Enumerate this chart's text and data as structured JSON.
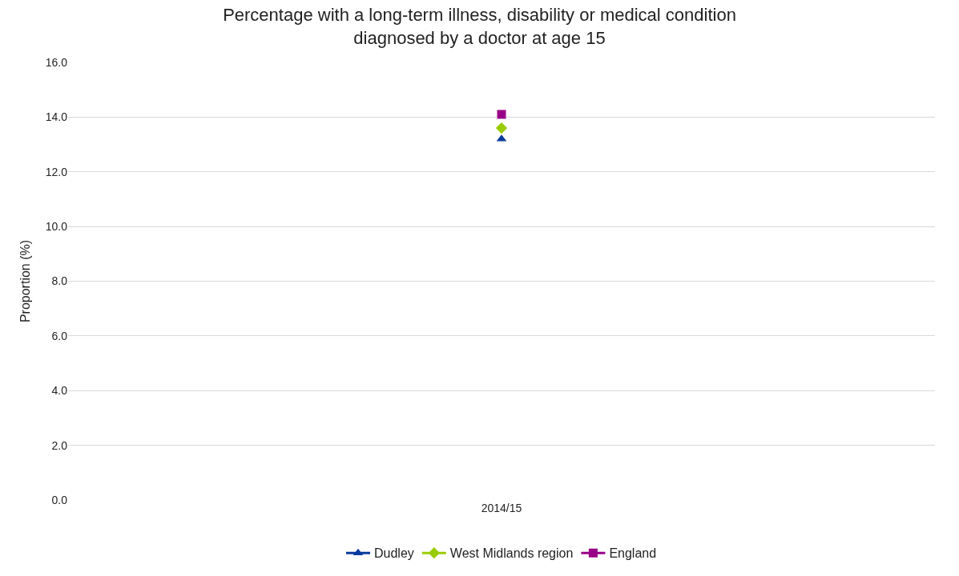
{
  "chart_data": {
    "type": "line",
    "title": "Percentage with a long-term illness, disability or medical condition\ndiagnosed by a doctor at age 15",
    "ylabel": "Proportion (%)",
    "categories": [
      "2014/15"
    ],
    "series": [
      {
        "name": "Dudley",
        "color": "#0b3a9e",
        "marker": "triangle",
        "values": [
          13.2
        ]
      },
      {
        "name": "West Midlands region",
        "color": "#99cc00",
        "marker": "diamond",
        "values": [
          13.6
        ]
      },
      {
        "name": "England",
        "color": "#990088",
        "marker": "square",
        "values": [
          14.1
        ]
      }
    ],
    "ylim": [
      0,
      16
    ],
    "yticks": [
      {
        "value": 0,
        "label": "0.0"
      },
      {
        "value": 2,
        "label": "2.0"
      },
      {
        "value": 4,
        "label": "4.0"
      },
      {
        "value": 6,
        "label": "6.0"
      },
      {
        "value": 8,
        "label": "8.0"
      },
      {
        "value": 10,
        "label": "10.0"
      },
      {
        "value": 12,
        "label": "12.0"
      },
      {
        "value": 14,
        "label": "14.0"
      },
      {
        "value": 16,
        "label": "16.0"
      }
    ],
    "grid": "y",
    "legend": "bottom",
    "line_style": "solid"
  }
}
